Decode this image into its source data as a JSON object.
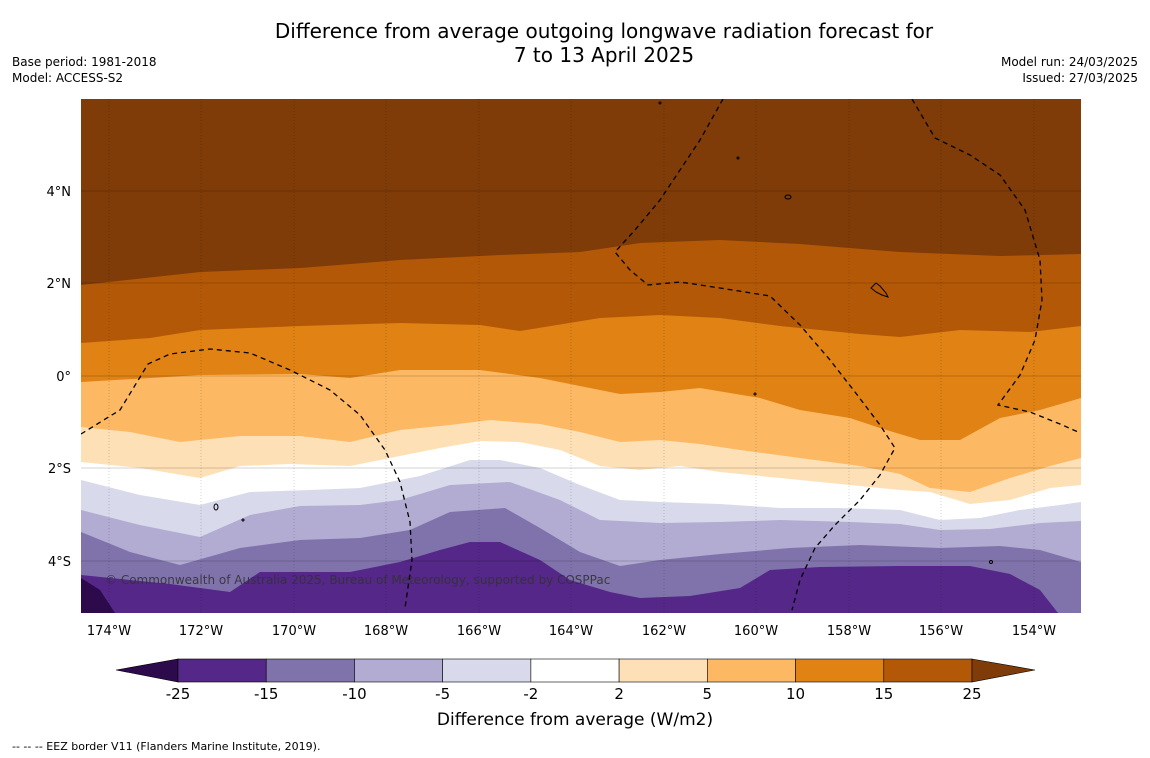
{
  "title_line1": "Difference from average outgoing longwave radiation forecast for",
  "title_line2": "7 to 13 April 2025",
  "meta_left": [
    "Base period: 1981-2018",
    "Model: ACCESS-S2"
  ],
  "meta_right": [
    "Model run: 24/03/2025",
    "Issued: 27/03/2025"
  ],
  "lat_labels": [
    "4°N",
    "2°N",
    "0°",
    "2°S",
    "4°S"
  ],
  "lon_labels": [
    "174°W",
    "172°W",
    "170°W",
    "168°W",
    "166°W",
    "164°W",
    "162°W",
    "160°W",
    "158°W",
    "156°W",
    "154°W"
  ],
  "copyright": "© Commonwealth of Australia 2025, Bureau of Meteorology, supported by COSPPac",
  "colorbar": {
    "labels": [
      "-25",
      "-15",
      "-10",
      "-5",
      "-2",
      "2",
      "5",
      "10",
      "15",
      "25"
    ],
    "colors": [
      "#2d0a4b",
      "#542788",
      "#8073ac",
      "#b2abd2",
      "#d8daeb",
      "#ffffff",
      "#fee0b6",
      "#fdb863",
      "#e08214",
      "#b35806",
      "#7f3b08"
    ],
    "title": "Difference from average (W/m2)"
  },
  "footnote": "--  --  -- EEZ border V11 (Flanders Marine Institute, 2019)."
}
